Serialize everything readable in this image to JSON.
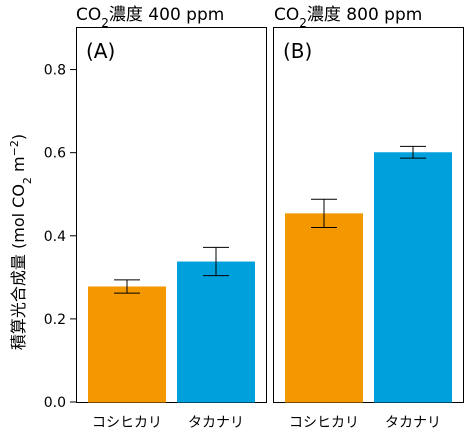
{
  "chart_data": [
    {
      "type": "bar",
      "panel_label": "(A)",
      "title_prefix": "CO",
      "title_sub": "2",
      "title_suffix": "濃度 400 ppm",
      "categories": [
        "コシヒカリ",
        "タカナリ"
      ],
      "values": [
        0.278,
        0.338
      ],
      "errors": [
        0.016,
        0.034
      ],
      "colors": [
        "#f39800",
        "#00a0dc"
      ],
      "ylim": [
        0,
        0.9
      ]
    },
    {
      "type": "bar",
      "panel_label": "(B)",
      "title_prefix": "CO",
      "title_sub": "2",
      "title_suffix": "濃度 800 ppm",
      "categories": [
        "コシヒカリ",
        "タカナリ"
      ],
      "values": [
        0.454,
        0.601
      ],
      "errors": [
        0.034,
        0.014
      ],
      "colors": [
        "#f39800",
        "#00a0dc"
      ],
      "ylim": [
        0,
        0.9
      ]
    }
  ],
  "y_axis": {
    "ticks": [
      0.0,
      0.2,
      0.4,
      0.6,
      0.8
    ],
    "tick_labels": [
      "0.0",
      "0.2",
      "0.4",
      "0.6",
      "0.8"
    ],
    "label_main": "積算光合成量 (mol CO",
    "label_sub": "2",
    "label_unit": " m",
    "label_sup": "−2",
    "label_close": ")"
  }
}
